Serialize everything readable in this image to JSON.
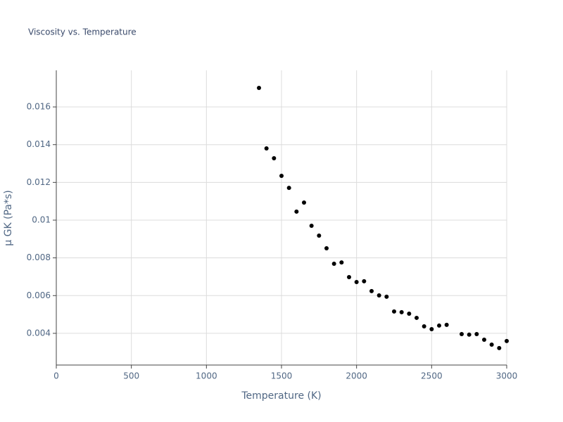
{
  "chart_data": {
    "type": "scatter",
    "title": "Viscosity vs. Temperature",
    "x_label": "Temperature (K)",
    "y_label": "μ GK (Pa*s)",
    "color": "#000000",
    "grid": true,
    "x": [
      1350,
      1400,
      1450,
      1500,
      1550,
      1600,
      1650,
      1700,
      1750,
      1800,
      1850,
      1900,
      1950,
      2000,
      2050,
      2100,
      2150,
      2200,
      2250,
      2300,
      2350,
      2400,
      2450,
      2500,
      2550,
      2600,
      2700,
      2750,
      2800,
      2850,
      2900,
      2950,
      3000
    ],
    "values": [
      0.01701,
      0.0138,
      0.01328,
      0.01235,
      0.01171,
      0.01045,
      0.01093,
      0.0097,
      0.00918,
      0.00851,
      0.00769,
      0.00776,
      0.00698,
      0.00672,
      0.00676,
      0.00624,
      0.00601,
      0.00594,
      0.00516,
      0.00512,
      0.00504,
      0.00482,
      0.00437,
      0.00422,
      0.00441,
      0.00445,
      0.00396,
      0.00393,
      0.00396,
      0.00366,
      0.0034,
      0.00322,
      0.00359
    ],
    "xlim": [
      0,
      3000
    ],
    "xticks": [
      0,
      500,
      1000,
      1500,
      2000,
      2500,
      3000
    ],
    "ylim": [
      0.00232,
      0.01794
    ],
    "yticks": [
      0.004,
      0.006,
      0.008,
      0.01,
      0.012,
      0.014,
      0.016
    ]
  }
}
